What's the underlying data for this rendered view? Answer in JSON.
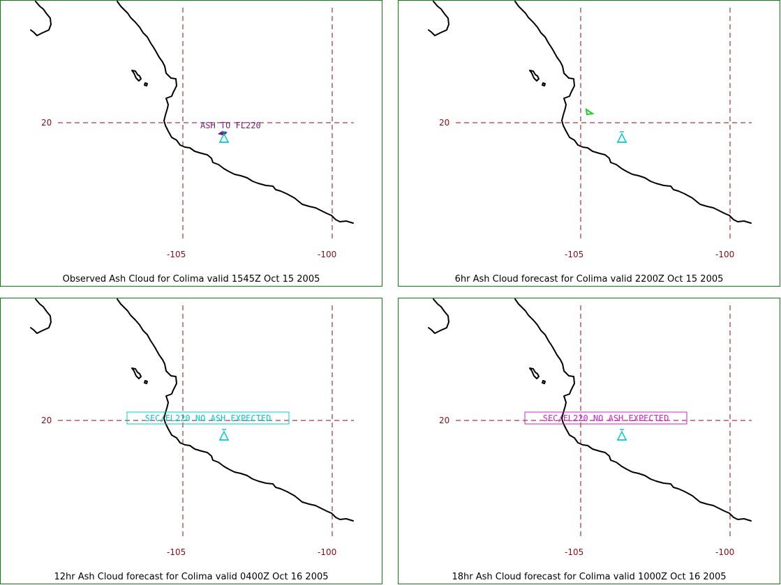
{
  "panels": [
    {
      "caption": "Observed Ash Cloud for Colima valid 1545Z Oct 15 2005",
      "lat_label": "20",
      "lon_labels": [
        "-105",
        "-100"
      ],
      "annotation": {
        "text": "ASH TO FL220",
        "color": "#7a1a7a",
        "boxed": false
      },
      "ash_polygon": {
        "color": "#7a1a7a",
        "shown": true
      },
      "volcano_color": "#00cccc"
    },
    {
      "caption": "6hr Ash Cloud forecast for Colima valid 2200Z Oct 15 2005",
      "lat_label": "20",
      "lon_labels": [
        "-105",
        "-100"
      ],
      "annotation": {
        "text": "",
        "color": "#22cc22",
        "boxed": false
      },
      "ash_polygon": {
        "color": "#22cc22",
        "shown": true
      },
      "volcano_color": "#00cccc"
    },
    {
      "caption": "12hr Ash Cloud forecast for Colima valid 0400Z Oct 16 2005",
      "lat_label": "20",
      "lon_labels": [
        "-105",
        "-100"
      ],
      "annotation": {
        "text": "SFC/FL220 NO ASH EXPECTED",
        "color": "#00cccc",
        "boxed": true
      },
      "ash_polygon": {
        "color": "#00cccc",
        "shown": false
      },
      "volcano_color": "#00cccc"
    },
    {
      "caption": "18hr Ash Cloud forecast for Colima valid 1000Z Oct 16 2005",
      "lat_label": "20",
      "lon_labels": [
        "-105",
        "-100"
      ],
      "annotation": {
        "text": "SFC/FL220 NO ASH EXPECTED",
        "color": "#cc22cc",
        "boxed": true
      },
      "ash_polygon": {
        "color": "#cc22cc",
        "shown": false
      },
      "volcano_color": "#00cccc"
    }
  ],
  "colors": {
    "frame": "#0f7a0f",
    "grid": "#8b0a14",
    "coastline": "#000000"
  }
}
